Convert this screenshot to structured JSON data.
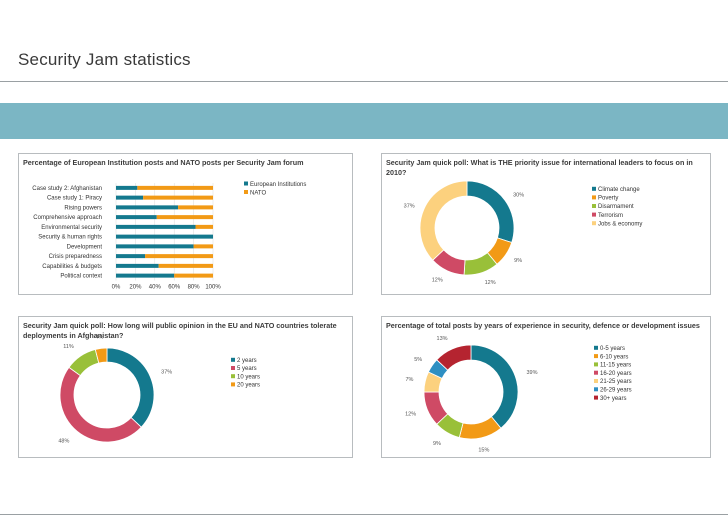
{
  "page": {
    "title": "Security Jam statistics",
    "band_color": "#7bb6c4",
    "rule_color": "#9aa0a3"
  },
  "colors": {
    "teal": "#14798e",
    "orange": "#f29a16",
    "green": "#99c039",
    "crimson": "#cf4a65",
    "cream": "#fcd17e",
    "blue": "#2e8fc2",
    "darkred": "#b52430"
  },
  "chart_data": [
    {
      "type": "bar",
      "stacked": true,
      "orientation": "horizontal",
      "title": "Percentage of European Institution posts and NATO posts per Security Jam forum",
      "categories": [
        "Case study 2: Afghanistan",
        "Case study 1: Piracy",
        "Rising powers",
        "Comprehensive approach",
        "Environmental security",
        "Security & human rights",
        "Development",
        "Crisis preparedness",
        "Capabilities & budgets",
        "Political context"
      ],
      "series": [
        {
          "name": "European Institutions",
          "color": "#14798e",
          "values": [
            22,
            28,
            64,
            42,
            82,
            100,
            80,
            30,
            44,
            60
          ]
        },
        {
          "name": "NATO",
          "color": "#f29a16",
          "values": [
            78,
            72,
            36,
            58,
            18,
            0,
            20,
            70,
            56,
            40
          ]
        }
      ],
      "xticks": [
        "0%",
        "20%",
        "40%",
        "60%",
        "80%",
        "100%"
      ],
      "xlim": [
        0,
        100
      ],
      "legend_position": "right"
    },
    {
      "type": "pie",
      "donut": true,
      "title": "Security Jam quick poll: What is THE priority issue for international leaders to focus on in 2010?",
      "labels": [
        "Climate change",
        "Poverty",
        "Disarmament",
        "Terrorism",
        "Jobs & economy"
      ],
      "values": [
        30,
        9,
        12,
        12,
        37
      ],
      "display_labels": [
        "30%",
        "9%",
        "12%",
        "12%",
        "37%"
      ],
      "colors": [
        "#14798e",
        "#f29a16",
        "#99c039",
        "#cf4a65",
        "#fcd17e"
      ],
      "legend_position": "right"
    },
    {
      "type": "pie",
      "donut": true,
      "title": "Security Jam quick poll: How long will public opinion in the EU and NATO countries tolerate deployments in Afghanistan?",
      "labels": [
        "2 years",
        "5 years",
        "10 years",
        "20 years"
      ],
      "values": [
        37,
        48,
        11,
        4
      ],
      "display_labels": [
        "37%",
        "48%",
        "11%",
        "4%"
      ],
      "colors": [
        "#14798e",
        "#cf4a65",
        "#99c039",
        "#f29a16"
      ],
      "legend_position": "right"
    },
    {
      "type": "pie",
      "donut": true,
      "title": "Percentage of total posts by years of experience in security, defence or development issues",
      "labels": [
        "0-5 years",
        "6-10 years",
        "11-15 years",
        "16-20 years",
        "21-25 years",
        "26-29 years",
        "30+ years"
      ],
      "values": [
        39,
        15,
        9,
        12,
        7,
        5,
        13
      ],
      "display_labels": [
        "39%",
        "15%",
        "9%",
        "12%",
        "7%",
        "5%",
        "13%"
      ],
      "colors": [
        "#14798e",
        "#f29a16",
        "#99c039",
        "#cf4a65",
        "#fcd17e",
        "#2e8fc2",
        "#b52430"
      ],
      "legend_position": "right"
    }
  ]
}
